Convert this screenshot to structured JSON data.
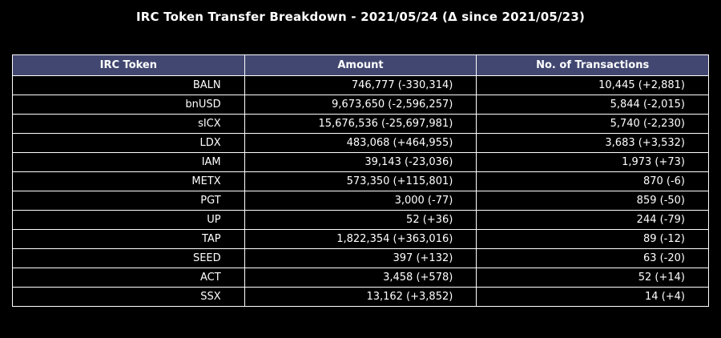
{
  "chart_data": {
    "type": "table",
    "title": "IRC Token Transfer Breakdown - 2021/05/24 (Δ since 2021/05/23)",
    "columns": [
      "IRC Token",
      "Amount",
      "No. of Transactions"
    ],
    "rows": [
      [
        "BALN",
        "746,777 (-330,314)",
        "10,445 (+2,881)"
      ],
      [
        "bnUSD",
        "9,673,650 (-2,596,257)",
        "5,844 (-2,015)"
      ],
      [
        "sICX",
        "15,676,536 (-25,697,981)",
        "5,740 (-2,230)"
      ],
      [
        "LDX",
        "483,068 (+464,955)",
        "3,683 (+3,532)"
      ],
      [
        "IAM",
        "39,143 (-23,036)",
        "1,973 (+73)"
      ],
      [
        "METX",
        "573,350 (+115,801)",
        "870 (-6)"
      ],
      [
        "PGT",
        "3,000 (-77)",
        "859 (-50)"
      ],
      [
        "UP",
        "52 (+36)",
        "244 (-79)"
      ],
      [
        "TAP",
        "1,822,354 (+363,016)",
        "89 (-12)"
      ],
      [
        "SEED",
        "397 (+132)",
        "63 (-20)"
      ],
      [
        "ACT",
        "3,458 (+578)",
        "52 (+14)"
      ],
      [
        "SSX",
        "13,162 (+3,852)",
        "14 (+4)"
      ]
    ],
    "header_color": "#414770",
    "background_color": "#000000",
    "text_color": "#ffffff",
    "grid": true
  }
}
